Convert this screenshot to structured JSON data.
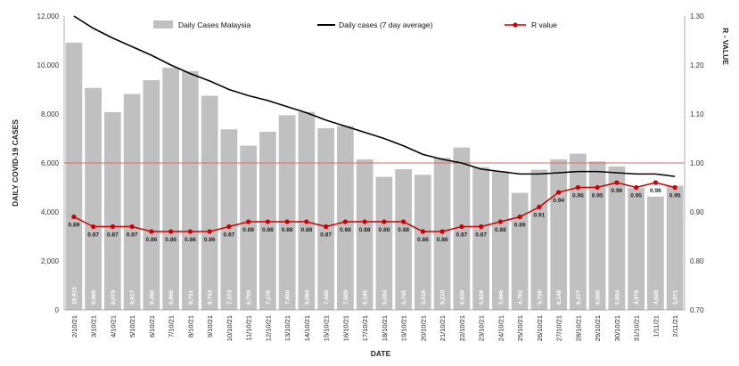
{
  "chart_data": {
    "type": "bar",
    "categories": [
      "2/10/21",
      "3/10/21",
      "4/10/21",
      "5/10/21",
      "6/10/21",
      "7/10/21",
      "8/10/21",
      "9/10/21",
      "10/10/21",
      "11/10/21",
      "12/10/21",
      "13/10/21",
      "14/10/21",
      "15/10/21",
      "16/10/21",
      "17/10/21",
      "18/10/21",
      "19/10/21",
      "20/10/21",
      "21/10/21",
      "22/10/21",
      "23/10/21",
      "24/10/21",
      "25/10/21",
      "26/10/21",
      "27/10/21",
      "28/10/21",
      "29/10/21",
      "30/10/21",
      "31/10/21",
      "1/11/21",
      "2/11/21"
    ],
    "series": [
      {
        "name": "Daily Cases Malaysia",
        "type": "bar",
        "axis": "left",
        "color": "#c0c0c0",
        "values": [
          10915,
          9066,
          8075,
          8817,
          9380,
          9890,
          9751,
          8743,
          7373,
          6709,
          7276,
          7950,
          8084,
          7420,
          7509,
          6145,
          5434,
          5745,
          5516,
          6210,
          6630,
          5828,
          5666,
          4782,
          5726,
          6148,
          6377,
          6060,
          5854,
          4979,
          4626,
          5071
        ],
        "value_labels": [
          "10,915",
          "9,066",
          "8,075",
          "8,817",
          "9,380",
          "9,890",
          "9,751",
          "8,743",
          "7,373",
          "6,709",
          "7,276",
          "7,950",
          "8,084",
          "7,420",
          "7,509",
          "6,145",
          "5,434",
          "5,745",
          "5,516",
          "6,210",
          "6,630",
          "5,828",
          "5,666",
          "4,782",
          "5,726",
          "6,148",
          "6,377",
          "6,060",
          "5,854",
          "4,979",
          "4,626",
          "5,071"
        ]
      },
      {
        "name": "Daily cases (7 day average)",
        "type": "line",
        "axis": "left",
        "color": "#000000",
        "values": [
          12000,
          11500,
          11100,
          10750,
          10400,
          10000,
          9650,
          9350,
          9000,
          8750,
          8550,
          8300,
          8050,
          7750,
          7500,
          7250,
          7000,
          6700,
          6350,
          6150,
          6000,
          5750,
          5650,
          5550,
          5550,
          5600,
          5650,
          5650,
          5600,
          5550,
          5550,
          5450
        ]
      },
      {
        "name": "R value",
        "type": "line",
        "axis": "right",
        "color": "#cc0000",
        "values": [
          0.89,
          0.87,
          0.87,
          0.87,
          0.86,
          0.86,
          0.86,
          0.86,
          0.87,
          0.88,
          0.88,
          0.88,
          0.88,
          0.87,
          0.88,
          0.88,
          0.88,
          0.88,
          0.86,
          0.86,
          0.87,
          0.87,
          0.88,
          0.89,
          0.91,
          0.94,
          0.95,
          0.95,
          0.96,
          0.95,
          0.96,
          0.95
        ],
        "value_labels": [
          "0.89",
          "0.87",
          "0.87",
          "0.87",
          "0.86",
          "0.86",
          "0.86",
          "0.86",
          "0.87",
          "0.88",
          "0.88",
          "0.88",
          "0.88",
          "0.87",
          "0.88",
          "0.88",
          "0.88",
          "0.88",
          "0.86",
          "0.86",
          "0.87",
          "0.87",
          "0.88",
          "0.89",
          "0.91",
          "0.94",
          "0.95",
          "0.95",
          "0.96",
          "0.95",
          "0.96",
          "0.95"
        ]
      }
    ],
    "reference_line": {
      "axis": "right",
      "value": 1.0,
      "color": "#e06666"
    },
    "xlabel": "DATE",
    "ylabel": "DAILY COVID-19 CASES",
    "y2label": "R - VALUE",
    "ylim": [
      0,
      12000
    ],
    "y2lim": [
      0.7,
      1.3
    ],
    "yticks": [
      "0",
      "2,000",
      "4,000",
      "6,000",
      "8,000",
      "10,000",
      "12,000"
    ],
    "y2ticks": [
      "0.70",
      "0.80",
      "0.90",
      "1.00",
      "1.10",
      "1.20",
      "1.30"
    ],
    "legend_position": "top",
    "grid": false
  }
}
